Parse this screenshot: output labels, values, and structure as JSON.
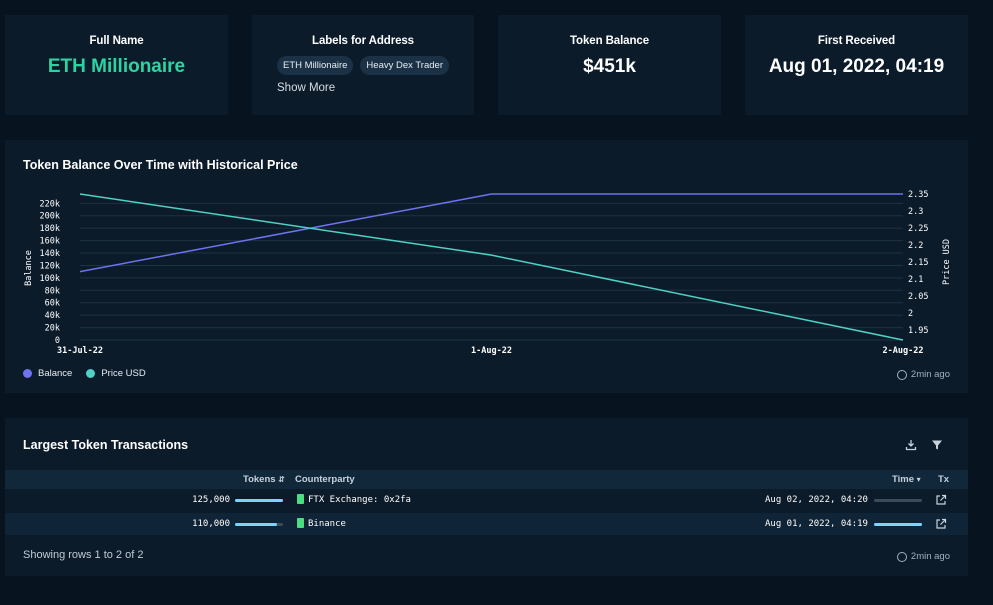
{
  "stats": {
    "full_name_title": "Full Name",
    "full_name_value": "ETH Millionaire",
    "labels_title": "Labels for Address",
    "labels": [
      "ETH Millionaire",
      "Heavy Dex Trader"
    ],
    "show_more": "Show More",
    "balance_title": "Token Balance",
    "balance_value": "$451k",
    "first_received_title": "First Received",
    "first_received_value": "Aug 01, 2022, 04:19"
  },
  "chart_section": {
    "title": "Token Balance Over Time with Historical Price",
    "updated": "2min ago"
  },
  "chart_data": {
    "type": "line",
    "title": "Token Balance Over Time with Historical Price",
    "x": [
      "31-Jul-22",
      "1-Aug-22",
      "2-Aug-22"
    ],
    "ylabel": "Balance",
    "y2label": "Price USD",
    "ylim": [
      0,
      235000
    ],
    "y2lim": [
      1.92,
      2.35
    ],
    "yticks": [
      "0",
      "20k",
      "40k",
      "60k",
      "80k",
      "100k",
      "120k",
      "140k",
      "160k",
      "180k",
      "200k",
      "220k"
    ],
    "y2ticks": [
      "1.95",
      "2",
      "2.05",
      "2.1",
      "2.15",
      "2.2",
      "2.25",
      "2.3",
      "2.35"
    ],
    "series": [
      {
        "name": "Balance",
        "axis": "left",
        "color": "#6e73f0",
        "values": [
          110000,
          235000,
          235000
        ]
      },
      {
        "name": "Price USD",
        "axis": "right",
        "color": "#4fd1c5",
        "values": [
          2.35,
          2.17,
          1.92
        ]
      }
    ],
    "grid": true,
    "legend": "bottom-left"
  },
  "table": {
    "title": "Largest Token Transactions",
    "columns": {
      "tokens": "Tokens",
      "counterparty": "Counterparty",
      "time": "Time",
      "tx": "Tx"
    },
    "rows": [
      {
        "tokens": "125,000",
        "tokens_fraction": 1.0,
        "counterparty": "FTX Exchange: 0x2fa",
        "time": "Aug 02, 2022, 04:20",
        "time_fraction": 0.0
      },
      {
        "tokens": "110,000",
        "tokens_fraction": 0.88,
        "counterparty": "Binance",
        "time": "Aug 01, 2022, 04:19",
        "time_fraction": 1.0
      }
    ],
    "footer": "Showing rows 1 to 2 of 2",
    "updated": "2min ago"
  }
}
